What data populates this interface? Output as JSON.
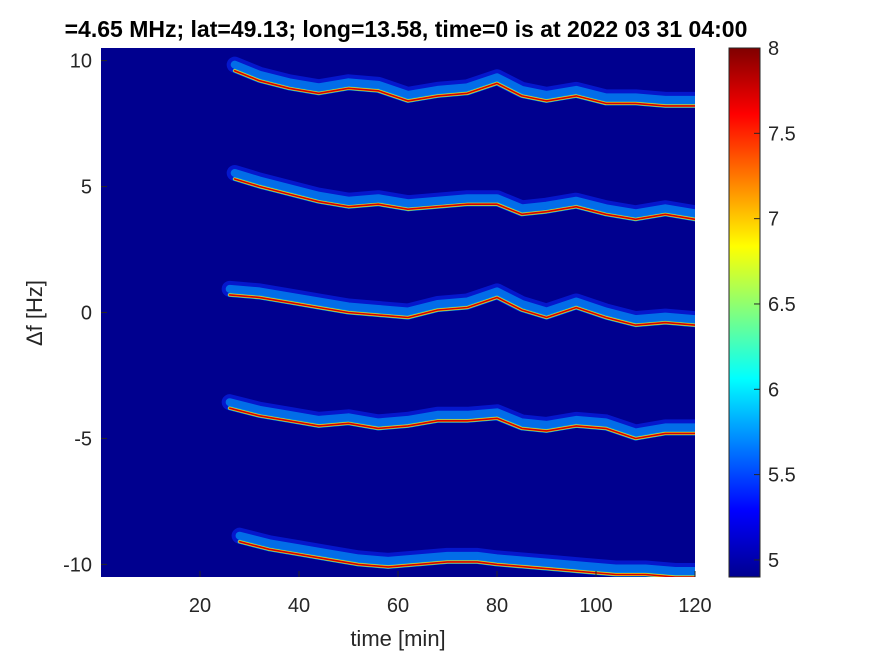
{
  "chart_data": {
    "type": "heatmap",
    "title": "=4.65 MHz;  lat=49.13; long=13.58, time=0 is at 2022 03 31 04:00",
    "xlabel": "time [min]",
    "ylabel": "Δf [Hz]",
    "xlim": [
      0,
      120
    ],
    "ylim": [
      -10.5,
      10.5
    ],
    "xticks": [
      {
        "value": 20,
        "label": "20"
      },
      {
        "value": 40,
        "label": "40"
      },
      {
        "value": 60,
        "label": "60"
      },
      {
        "value": 80,
        "label": "80"
      },
      {
        "value": 100,
        "label": "100"
      },
      {
        "value": 120,
        "label": "120"
      }
    ],
    "yticks": [
      {
        "value": 10,
        "label": "10"
      },
      {
        "value": 5,
        "label": "5"
      },
      {
        "value": 0,
        "label": "0"
      },
      {
        "value": -5,
        "label": "-5"
      },
      {
        "value": -10,
        "label": "-10"
      }
    ],
    "colormap": "jet",
    "background_color": "#00008f",
    "colorbar": {
      "range": [
        4.9,
        8.0
      ],
      "ticks": [
        {
          "value": 5,
          "label": "5"
        },
        {
          "value": 5.5,
          "label": "5.5"
        },
        {
          "value": 6,
          "label": "6"
        },
        {
          "value": 6.5,
          "label": "6.5"
        },
        {
          "value": 7,
          "label": "7"
        },
        {
          "value": 7.5,
          "label": "7.5"
        },
        {
          "value": 8,
          "label": "8"
        }
      ]
    },
    "traces": [
      {
        "points": [
          [
            27,
            9.6
          ],
          [
            32,
            9.2
          ],
          [
            38,
            8.9
          ],
          [
            44,
            8.7
          ],
          [
            50,
            8.9
          ],
          [
            56,
            8.8
          ],
          [
            62,
            8.4
          ],
          [
            68,
            8.6
          ],
          [
            74,
            8.7
          ],
          [
            80,
            9.1
          ],
          [
            85,
            8.6
          ],
          [
            90,
            8.4
          ],
          [
            96,
            8.6
          ],
          [
            102,
            8.3
          ],
          [
            108,
            8.3
          ],
          [
            114,
            8.2
          ],
          [
            120,
            8.2
          ]
        ]
      },
      {
        "points": [
          [
            27,
            5.3
          ],
          [
            32,
            5.0
          ],
          [
            38,
            4.7
          ],
          [
            44,
            4.4
          ],
          [
            50,
            4.2
          ],
          [
            56,
            4.3
          ],
          [
            62,
            4.1
          ],
          [
            68,
            4.2
          ],
          [
            74,
            4.3
          ],
          [
            80,
            4.3
          ],
          [
            85,
            3.9
          ],
          [
            90,
            4.0
          ],
          [
            96,
            4.2
          ],
          [
            102,
            3.9
          ],
          [
            108,
            3.7
          ],
          [
            114,
            3.9
          ],
          [
            120,
            3.7
          ]
        ]
      },
      {
        "points": [
          [
            26,
            0.7
          ],
          [
            32,
            0.6
          ],
          [
            38,
            0.4
          ],
          [
            44,
            0.2
          ],
          [
            50,
            0.0
          ],
          [
            56,
            -0.1
          ],
          [
            62,
            -0.2
          ],
          [
            68,
            0.1
          ],
          [
            74,
            0.2
          ],
          [
            80,
            0.6
          ],
          [
            85,
            0.1
          ],
          [
            90,
            -0.2
          ],
          [
            96,
            0.2
          ],
          [
            102,
            -0.2
          ],
          [
            108,
            -0.5
          ],
          [
            114,
            -0.4
          ],
          [
            120,
            -0.5
          ]
        ]
      },
      {
        "points": [
          [
            26,
            -3.8
          ],
          [
            32,
            -4.1
          ],
          [
            38,
            -4.3
          ],
          [
            44,
            -4.5
          ],
          [
            50,
            -4.4
          ],
          [
            56,
            -4.6
          ],
          [
            62,
            -4.5
          ],
          [
            68,
            -4.3
          ],
          [
            74,
            -4.3
          ],
          [
            80,
            -4.2
          ],
          [
            85,
            -4.6
          ],
          [
            90,
            -4.7
          ],
          [
            96,
            -4.5
          ],
          [
            102,
            -4.6
          ],
          [
            108,
            -5.0
          ],
          [
            114,
            -4.8
          ],
          [
            120,
            -4.8
          ]
        ]
      },
      {
        "points": [
          [
            28,
            -9.1
          ],
          [
            34,
            -9.4
          ],
          [
            40,
            -9.6
          ],
          [
            46,
            -9.8
          ],
          [
            52,
            -10.0
          ],
          [
            58,
            -10.1
          ],
          [
            64,
            -10.0
          ],
          [
            70,
            -9.9
          ],
          [
            76,
            -9.9
          ],
          [
            80,
            -10.0
          ],
          [
            86,
            -10.1
          ],
          [
            92,
            -10.2
          ],
          [
            98,
            -10.3
          ],
          [
            104,
            -10.4
          ],
          [
            110,
            -10.4
          ],
          [
            116,
            -10.5
          ],
          [
            120,
            -10.5
          ]
        ]
      }
    ]
  }
}
